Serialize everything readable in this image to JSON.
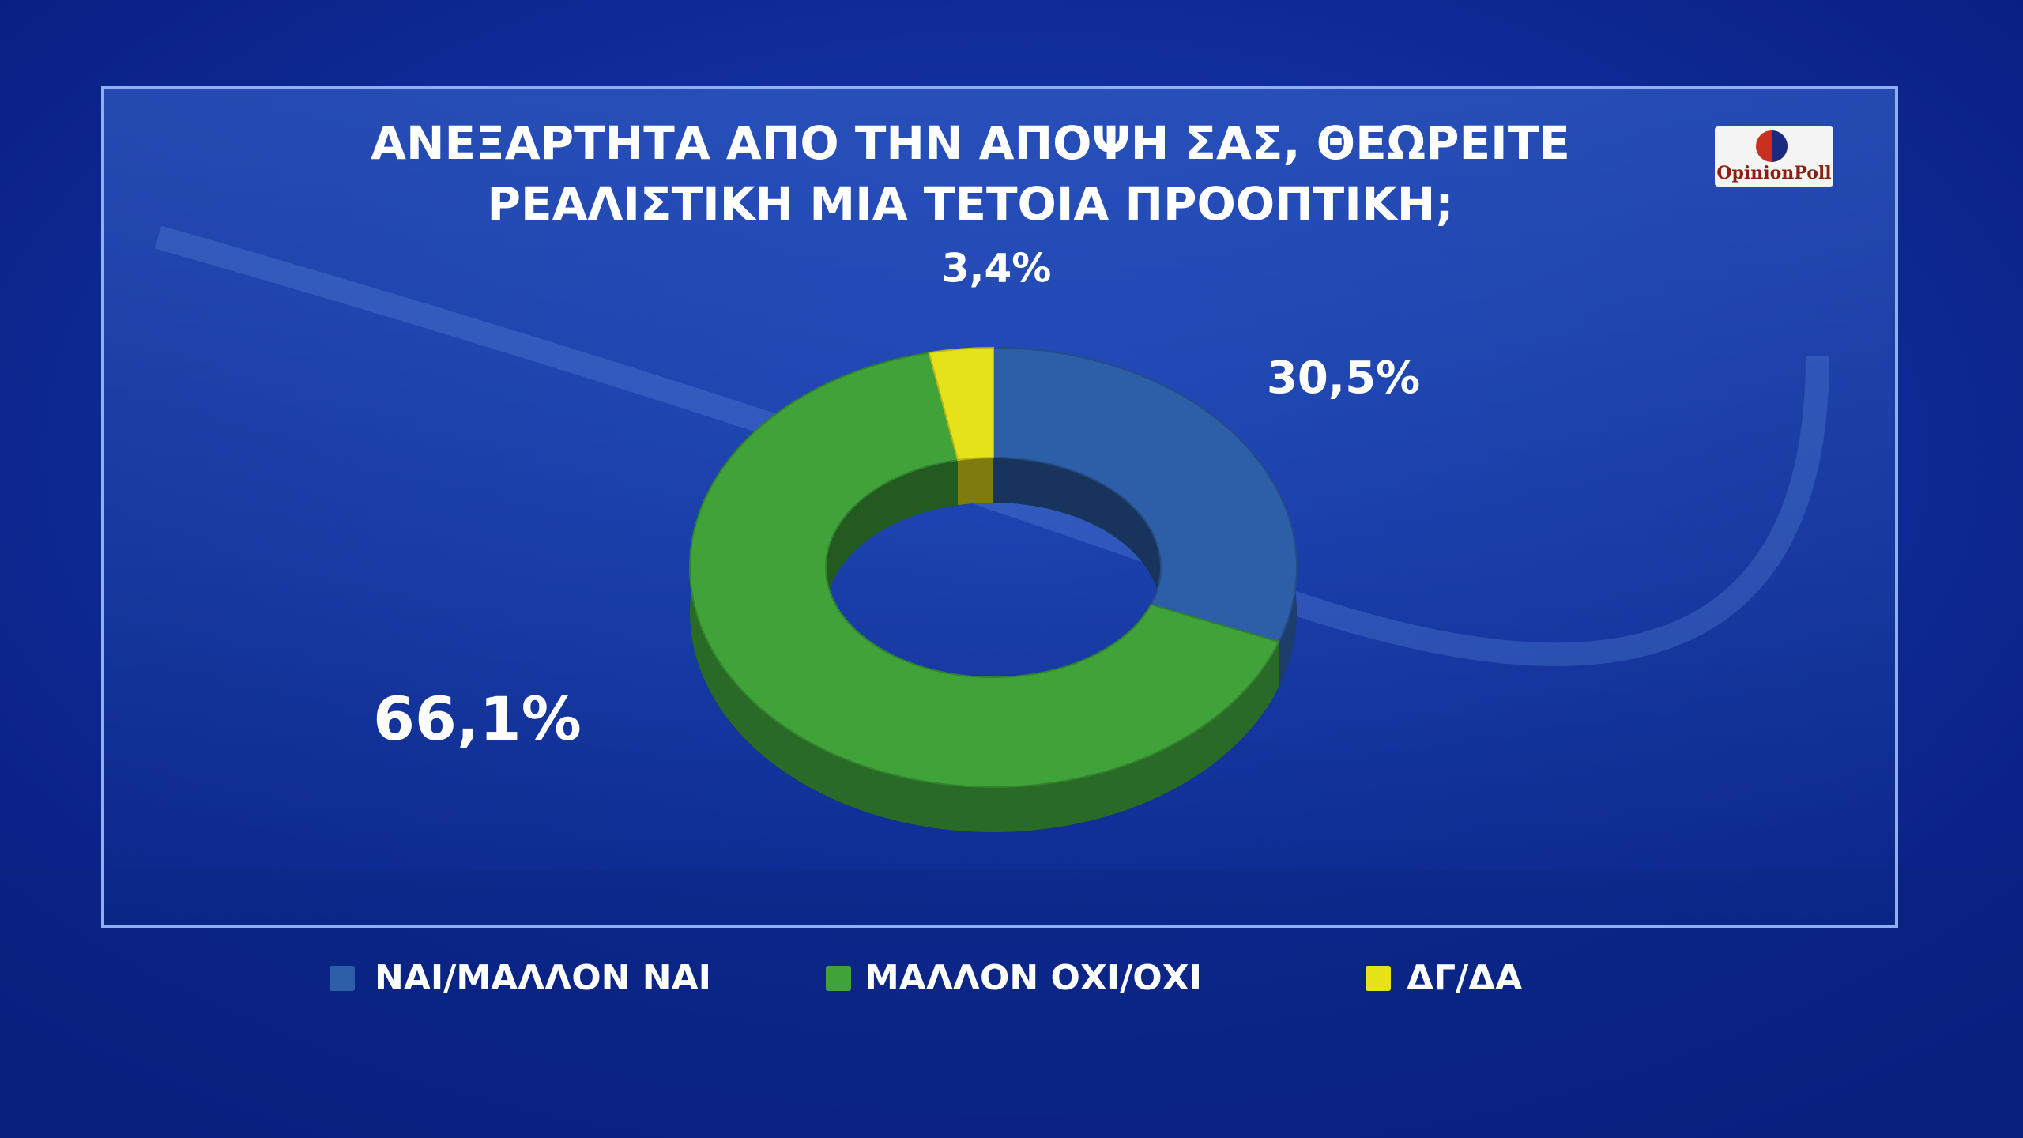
{
  "chart_data": {
    "type": "pie",
    "title": [
      "ΑΝΕΞΑΡΤΗΤΑ ΑΠΟ ΤΗΝ ΑΠΟΨΗ ΣΑΣ, ΘΕΩΡΕΙΤΕ",
      "ΡΕΑΛΙΣΤΙΚΗ ΜΙΑ ΤΕΤΟΙΑ ΠΡΟΟΠΤΙΚΗ;"
    ],
    "logo": "OpinionPoll",
    "categories": [
      "ΝΑΙ/ΜΑΛΛΟΝ ΝΑΙ",
      "ΜΑΛΛΟΝ ΟΧΙ/ΟΧΙ",
      "ΔΓ/ΔΑ"
    ],
    "values": [
      30.5,
      66.1,
      3.4
    ],
    "value_labels": [
      "30,5%",
      "66,1%",
      "3,4%"
    ],
    "colors": [
      "#2d5fa8",
      "#3fa33a",
      "#e6e21a"
    ],
    "legend": "bottom"
  }
}
